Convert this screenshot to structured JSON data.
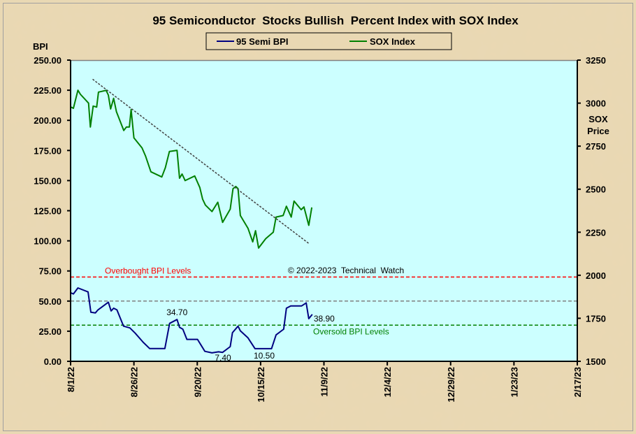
{
  "chart_data": {
    "type": "line",
    "title": "95 Semiconductor  Stocks Bullish  Percent Index with SOX Index",
    "left_axis": {
      "label": "BPI",
      "range": [
        0,
        250
      ],
      "ticks": [
        "0.00",
        "25.00",
        "50.00",
        "75.00",
        "100.00",
        "125.00",
        "150.00",
        "175.00",
        "200.00",
        "225.00",
        "250.00"
      ]
    },
    "right_axis": {
      "label_line1": "SOX",
      "label_line2": "Price",
      "range": [
        1500,
        3250
      ],
      "ticks": [
        "1500",
        "1750",
        "2000",
        "2250",
        "2500",
        "2750",
        "3000",
        "3250"
      ]
    },
    "x_axis": {
      "days_range": [
        0,
        200
      ],
      "tick_labels": [
        "8/1/22",
        "8/26/22",
        "9/20/22",
        "10/15/22",
        "11/9/22",
        "12/4/22",
        "12/29/22",
        "1/23/23",
        "2/17/23"
      ]
    },
    "legend": {
      "placement": "top-center",
      "items": [
        "95 Semi BPI",
        "SOX Index"
      ]
    },
    "series": [
      {
        "name": "95 Semi BPI",
        "axis": "left",
        "color": "#000080",
        "x": [
          0.2,
          1.1,
          2.9,
          6.9,
          8,
          9.8,
          10.8,
          14.9,
          16,
          17,
          18.3,
          20.9,
          23.4,
          25.5,
          28.7,
          31.2,
          37.2,
          39.1,
          42,
          43,
          44.3,
          45.9,
          50.1,
          53,
          55.8,
          58.4,
          60,
          63,
          63.9,
          66.1,
          67,
          70,
          72.8,
          79.3,
          81.1,
          84.1,
          85.2,
          86.9,
          91.2,
          93,
          94,
          95.4
        ],
        "y": [
          56.7,
          55.9,
          60.9,
          57.6,
          40.8,
          40.2,
          42.7,
          49.1,
          41.8,
          44.1,
          42.7,
          29.2,
          27.7,
          23.4,
          15.7,
          10.6,
          10.6,
          31.5,
          34.7,
          28.2,
          26.7,
          18.2,
          18.2,
          8.3,
          7.0,
          7.9,
          7.4,
          12.2,
          23.8,
          29.2,
          25.3,
          19.5,
          10.5,
          10.5,
          21.9,
          26.7,
          44.1,
          46.0,
          46.0,
          48.5,
          35.4,
          38.9
        ]
      },
      {
        "name": "SOX Index",
        "axis": "right",
        "color": "#008000",
        "x": [
          0.2,
          1.1,
          2.9,
          3.9,
          7.1,
          7.8,
          8.9,
          10.3,
          11,
          14,
          14.9,
          15.8,
          17,
          18.1,
          21,
          22,
          23.2,
          23.9,
          25,
          28.2,
          29.6,
          31.7,
          36,
          37.4,
          39,
          42,
          43,
          44,
          45.2,
          49,
          51,
          52.1,
          53.2,
          55.8,
          58.1,
          60,
          63,
          64.1,
          65.2,
          66.1,
          67,
          70,
          71.9,
          73,
          74.2,
          77,
          80,
          81.1,
          83.9,
          85.2,
          87.1,
          88.2,
          91,
          92.1,
          94,
          95.2
        ],
        "y": [
          2977,
          2970,
          3075,
          3051,
          3000,
          2861,
          2983,
          2977,
          3064,
          3074,
          3047,
          2966,
          3028,
          2950,
          2841,
          2861,
          2861,
          2963,
          2798,
          2740,
          2692,
          2601,
          2571,
          2625,
          2719,
          2726,
          2564,
          2588,
          2550,
          2577,
          2510,
          2442,
          2408,
          2370,
          2424,
          2307,
          2384,
          2503,
          2516,
          2503,
          2347,
          2273,
          2194,
          2259,
          2158,
          2212,
          2250,
          2338,
          2347,
          2401,
          2338,
          2431,
          2381,
          2397,
          2290,
          2394
        ]
      }
    ],
    "trendline": {
      "axis": "right",
      "x": [
        8.7,
        94
      ],
      "y": [
        3139,
        2185
      ],
      "color": "#404040"
    },
    "reference_lines": [
      {
        "value": 70,
        "color": "#ff0000",
        "label": "Overbought  BPI Levels"
      },
      {
        "value": 50,
        "color": "#808080",
        "label": ""
      },
      {
        "value": 30,
        "color": "#008000",
        "label": "Oversold  BPI Levels"
      }
    ],
    "annotations": [
      {
        "text": "34.70",
        "x": 42,
        "y": 34.7
      },
      {
        "text": "7.40",
        "x": 60,
        "y": 7.4
      },
      {
        "text": "10.50",
        "x": 76,
        "y": 10.5
      },
      {
        "text": "38.90",
        "x": 95.4,
        "y": 38.9
      }
    ],
    "copyright": "© 2022-2023  Technical  Watch",
    "plot_background": "#ccffff"
  }
}
